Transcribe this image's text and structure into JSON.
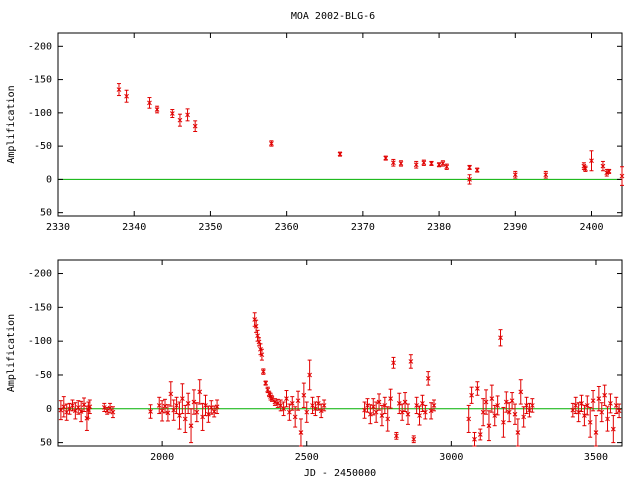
{
  "figure_title": "MOA 2002-BLG-6",
  "xlabel": "JD - 2450000",
  "colors": {
    "points": "#e00000",
    "zero_line": "#00b000",
    "axes": "#000000"
  },
  "chart_data": [
    {
      "type": "scatter",
      "title": "MOA 2002-BLG-6",
      "xlabel": "",
      "ylabel": "Amplification",
      "xlim": [
        2330,
        2404
      ],
      "ylim": [
        55,
        -220
      ],
      "y_inverted": true,
      "xticks": [
        2330,
        2340,
        2350,
        2360,
        2370,
        2380,
        2390,
        2400
      ],
      "yticks": [
        -200,
        -150,
        -100,
        -50,
        0,
        50
      ],
      "zero_line": 0,
      "series": [
        {
          "points": [
            [
              2338.0,
              -135,
              9
            ],
            [
              2339.0,
              -125,
              9
            ],
            [
              2342.0,
              -115,
              8
            ],
            [
              2343.0,
              -105,
              5
            ],
            [
              2345.0,
              -99,
              6
            ],
            [
              2346.0,
              -89,
              9
            ],
            [
              2347.0,
              -97,
              9
            ],
            [
              2348.0,
              -80,
              8
            ],
            [
              2358.0,
              -54,
              4
            ],
            [
              2367.0,
              -38,
              3
            ],
            [
              2373.0,
              -32,
              3
            ],
            [
              2374.0,
              -25,
              5
            ],
            [
              2375.0,
              -24,
              4
            ],
            [
              2377.0,
              -22,
              5
            ],
            [
              2378.0,
              -25,
              4
            ],
            [
              2379.0,
              -24,
              3
            ],
            [
              2380.0,
              -22,
              3
            ],
            [
              2380.5,
              -24,
              4
            ],
            [
              2381.0,
              -19,
              4
            ],
            [
              2384.0,
              0,
              7
            ],
            [
              2384.0,
              -18,
              3
            ],
            [
              2385.0,
              -14,
              3
            ],
            [
              2390.0,
              -7,
              5
            ],
            [
              2394.0,
              -7,
              5
            ],
            [
              2399.0,
              -20,
              5
            ],
            [
              2399.2,
              -16,
              4
            ],
            [
              2400.0,
              -28,
              15
            ],
            [
              2401.5,
              -20,
              7
            ],
            [
              2402.0,
              -10,
              5
            ],
            [
              2402.3,
              -12,
              3
            ],
            [
              2404.0,
              -5,
              14
            ]
          ]
        }
      ]
    },
    {
      "type": "scatter",
      "title": "",
      "xlabel": "JD - 2450000",
      "ylabel": "Amplification",
      "xlim": [
        1640,
        3590
      ],
      "ylim": [
        55,
        -220
      ],
      "y_inverted": true,
      "xticks": [
        2000,
        2500,
        3000,
        3500
      ],
      "yticks": [
        -200,
        -150,
        -100,
        -50,
        0,
        50
      ],
      "zero_line": 0,
      "series": [
        {
          "points": [
            [
              1650,
              2,
              14
            ],
            [
              1660,
              -3,
              15
            ],
            [
              1670,
              5,
              12
            ],
            [
              1680,
              0,
              8
            ],
            [
              1690,
              -5,
              8
            ],
            [
              1700,
              3,
              12
            ],
            [
              1710,
              -2,
              10
            ],
            [
              1720,
              4,
              15
            ],
            [
              1730,
              -6,
              10
            ],
            [
              1740,
              14,
              18
            ],
            [
              1745,
              2,
              12
            ],
            [
              1750,
              -3,
              10
            ],
            [
              1800,
              -2,
              6
            ],
            [
              1810,
              3,
              5
            ],
            [
              1820,
              -1,
              7
            ],
            [
              1830,
              5,
              8
            ],
            [
              1960,
              4,
              10
            ],
            [
              1990,
              -5,
              12
            ],
            [
              2000,
              3,
              15
            ],
            [
              2010,
              -4,
              10
            ],
            [
              2020,
              6,
              12
            ],
            [
              2030,
              -22,
              18
            ],
            [
              2040,
              2,
              15
            ],
            [
              2050,
              -5,
              12
            ],
            [
              2060,
              10,
              20
            ],
            [
              2070,
              -15,
              22
            ],
            [
              2080,
              15,
              20
            ],
            [
              2090,
              -8,
              15
            ],
            [
              2100,
              25,
              25
            ],
            [
              2110,
              -10,
              18
            ],
            [
              2120,
              5,
              14
            ],
            [
              2130,
              -25,
              18
            ],
            [
              2140,
              12,
              20
            ],
            [
              2150,
              -5,
              15
            ],
            [
              2160,
              8,
              12
            ],
            [
              2170,
              -2,
              10
            ],
            [
              2180,
              4,
              8
            ],
            [
              2190,
              -3,
              10
            ],
            [
              2320,
              -132,
              10
            ],
            [
              2325,
              -122,
              9
            ],
            [
              2330,
              -108,
              8
            ],
            [
              2335,
              -99,
              6
            ],
            [
              2340,
              -88,
              8
            ],
            [
              2345,
              -80,
              8
            ],
            [
              2350,
              -55,
              4
            ],
            [
              2358,
              -38,
              3
            ],
            [
              2365,
              -28,
              4
            ],
            [
              2370,
              -22,
              4
            ],
            [
              2375,
              -18,
              5
            ],
            [
              2380,
              -15,
              4
            ],
            [
              2390,
              -10,
              5
            ],
            [
              2400,
              -8,
              6
            ],
            [
              2410,
              -5,
              8
            ],
            [
              2420,
              0,
              10
            ],
            [
              2430,
              -15,
              12
            ],
            [
              2440,
              5,
              12
            ],
            [
              2450,
              -8,
              10
            ],
            [
              2460,
              12,
              15
            ],
            [
              2470,
              -12,
              14
            ],
            [
              2480,
              35,
              20
            ],
            [
              2490,
              -20,
              18
            ],
            [
              2500,
              5,
              15
            ],
            [
              2510,
              -50,
              22
            ],
            [
              2520,
              -5,
              12
            ],
            [
              2530,
              0,
              10
            ],
            [
              2540,
              -8,
              10
            ],
            [
              2550,
              3,
              10
            ],
            [
              2560,
              -5,
              8
            ],
            [
              2700,
              2,
              12
            ],
            [
              2710,
              -5,
              10
            ],
            [
              2720,
              8,
              14
            ],
            [
              2730,
              -3,
              12
            ],
            [
              2740,
              5,
              15
            ],
            [
              2750,
              -10,
              12
            ],
            [
              2760,
              10,
              15
            ],
            [
              2770,
              -5,
              12
            ],
            [
              2780,
              15,
              18
            ],
            [
              2790,
              -15,
              14
            ],
            [
              2800,
              -68,
              8
            ],
            [
              2810,
              40,
              5
            ],
            [
              2820,
              -8,
              15
            ],
            [
              2830,
              5,
              12
            ],
            [
              2840,
              -10,
              14
            ],
            [
              2850,
              8,
              15
            ],
            [
              2860,
              -70,
              10
            ],
            [
              2870,
              45,
              5
            ],
            [
              2880,
              -5,
              12
            ],
            [
              2890,
              10,
              14
            ],
            [
              2900,
              -8,
              12
            ],
            [
              2910,
              5,
              10
            ],
            [
              2920,
              -45,
              10
            ],
            [
              2930,
              3,
              12
            ],
            [
              2940,
              -5,
              8
            ],
            [
              3060,
              15,
              20
            ],
            [
              3070,
              -20,
              12
            ],
            [
              3080,
              45,
              10
            ],
            [
              3090,
              -30,
              10
            ],
            [
              3100,
              38,
              8
            ],
            [
              3110,
              5,
              20
            ],
            [
              3120,
              -10,
              18
            ],
            [
              3130,
              25,
              22
            ],
            [
              3140,
              -15,
              20
            ],
            [
              3150,
              10,
              15
            ],
            [
              3160,
              -5,
              14
            ],
            [
              3170,
              -105,
              12
            ],
            [
              3180,
              20,
              22
            ],
            [
              3190,
              -10,
              15
            ],
            [
              3200,
              5,
              14
            ],
            [
              3210,
              -12,
              12
            ],
            [
              3220,
              8,
              15
            ],
            [
              3230,
              35,
              20
            ],
            [
              3240,
              -25,
              18
            ],
            [
              3250,
              12,
              15
            ],
            [
              3260,
              -5,
              12
            ],
            [
              3270,
              2,
              10
            ],
            [
              3280,
              -5,
              10
            ],
            [
              3420,
              2,
              10
            ],
            [
              3430,
              -5,
              12
            ],
            [
              3440,
              5,
              14
            ],
            [
              3450,
              -8,
              12
            ],
            [
              3460,
              10,
              15
            ],
            [
              3470,
              -5,
              14
            ],
            [
              3480,
              20,
              22
            ],
            [
              3490,
              -12,
              15
            ],
            [
              3500,
              35,
              25
            ],
            [
              3510,
              -15,
              18
            ],
            [
              3520,
              5,
              14
            ],
            [
              3530,
              -20,
              15
            ],
            [
              3540,
              15,
              18
            ],
            [
              3550,
              -8,
              14
            ],
            [
              3560,
              30,
              20
            ],
            [
              3570,
              -5,
              12
            ],
            [
              3580,
              3,
              10
            ]
          ]
        }
      ]
    }
  ]
}
